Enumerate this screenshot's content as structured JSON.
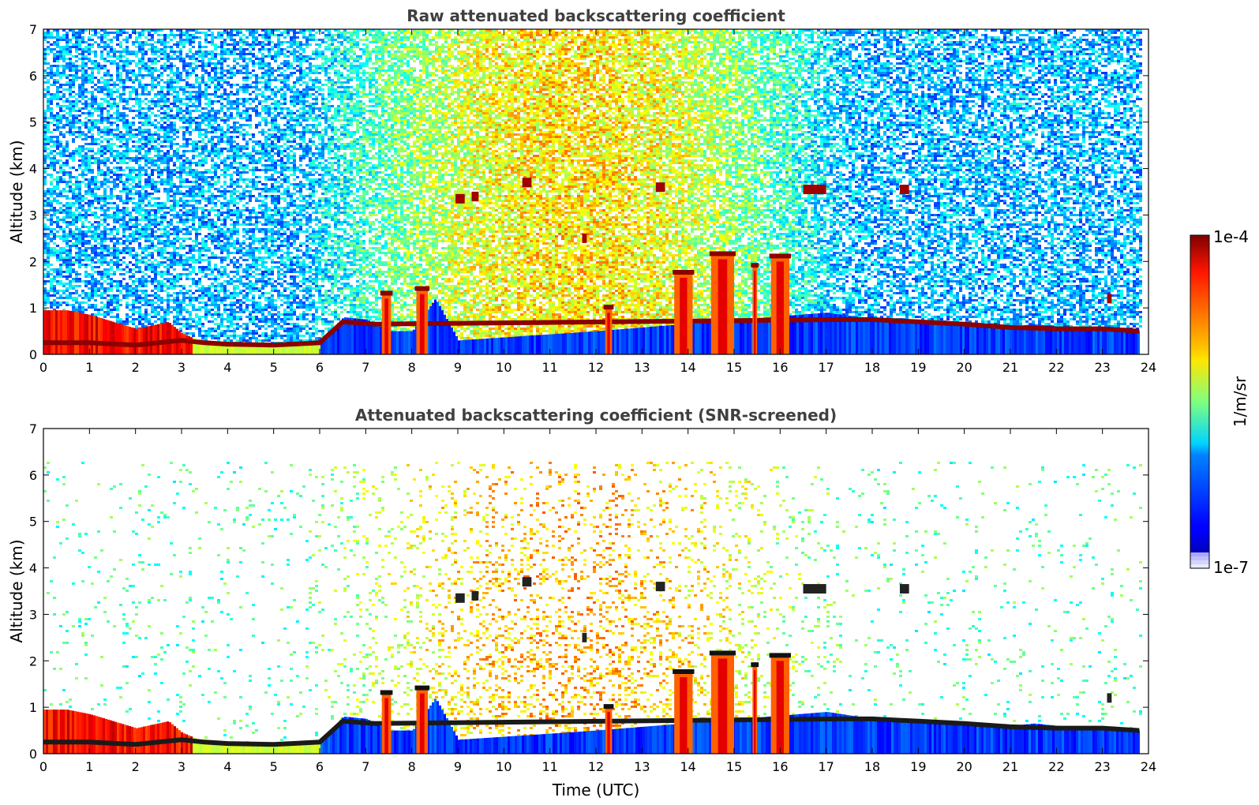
{
  "chart_data": [
    {
      "type": "heatmap",
      "title": "Raw attenuated backscattering coefficient",
      "xlabel": "",
      "ylabel": "Altitude (km)",
      "xlim": [
        0,
        24
      ],
      "ylim": [
        0,
        7
      ],
      "xticks": [
        "0",
        "1",
        "2",
        "3",
        "4",
        "5",
        "6",
        "7",
        "8",
        "9",
        "10",
        "11",
        "12",
        "13",
        "14",
        "15",
        "16",
        "17",
        "18",
        "19",
        "20",
        "21",
        "22",
        "23",
        "24"
      ],
      "yticks": [
        "0",
        "1",
        "2",
        "3",
        "4",
        "5",
        "6",
        "7"
      ],
      "screened": false,
      "data_end_time": 23.8,
      "boundary_layer_top_km": [
        [
          0,
          0.95
        ],
        [
          0.5,
          0.95
        ],
        [
          1,
          0.85
        ],
        [
          2,
          0.55
        ],
        [
          2.7,
          0.7
        ],
        [
          3,
          0.45
        ],
        [
          3.5,
          0.25
        ],
        [
          4,
          0.2
        ],
        [
          5,
          0.18
        ],
        [
          6,
          0.25
        ],
        [
          6.5,
          0.8
        ],
        [
          7,
          0.75
        ],
        [
          7.5,
          0.5
        ],
        [
          8,
          0.5
        ],
        [
          8.5,
          1.2
        ],
        [
          9,
          0.3
        ],
        [
          12,
          0.5
        ],
        [
          17,
          0.9
        ],
        [
          18,
          0.75
        ],
        [
          19,
          0.7
        ],
        [
          20,
          0.65
        ],
        [
          21,
          0.6
        ],
        [
          21.5,
          0.65
        ],
        [
          22,
          0.6
        ],
        [
          23,
          0.55
        ],
        [
          23.8,
          0.5
        ]
      ],
      "aerosol_layer_km": [
        [
          0,
          0.25
        ],
        [
          1,
          0.25
        ],
        [
          2,
          0.2
        ],
        [
          3,
          0.3
        ],
        [
          3.5,
          0.25
        ],
        [
          4,
          0.22
        ],
        [
          5,
          0.2
        ],
        [
          6,
          0.25
        ],
        [
          6.5,
          0.7
        ],
        [
          7.2,
          0.65
        ],
        [
          17.3,
          0.75
        ],
        [
          18,
          0.75
        ],
        [
          19,
          0.7
        ],
        [
          20,
          0.65
        ],
        [
          21,
          0.58
        ],
        [
          22,
          0.55
        ],
        [
          23,
          0.55
        ],
        [
          23.8,
          0.5
        ]
      ],
      "precipitation_shafts": [
        {
          "t0": 7.35,
          "t1": 7.55,
          "top": 1.3
        },
        {
          "t0": 8.1,
          "t1": 8.35,
          "top": 1.4
        },
        {
          "t0": 12.2,
          "t1": 12.35,
          "top": 1.0
        },
        {
          "t0": 13.7,
          "t1": 14.1,
          "top": 1.75
        },
        {
          "t0": 14.5,
          "t1": 15.0,
          "top": 2.15
        },
        {
          "t0": 15.4,
          "t1": 15.5,
          "top": 1.9
        },
        {
          "t0": 15.8,
          "t1": 16.2,
          "top": 2.1
        }
      ],
      "cloud_patches": [
        {
          "t": 8.95,
          "t2": 9.15,
          "z": 3.35
        },
        {
          "t": 9.3,
          "t2": 9.45,
          "z": 3.4
        },
        {
          "t": 10.4,
          "t2": 10.6,
          "z": 3.7
        },
        {
          "t": 11.7,
          "t2": 11.8,
          "z": 2.5
        },
        {
          "t": 13.3,
          "t2": 13.5,
          "z": 3.6
        },
        {
          "t": 16.5,
          "t2": 17.0,
          "z": 3.55
        },
        {
          "t": 18.6,
          "t2": 18.8,
          "z": 3.55
        },
        {
          "t": 23.1,
          "t2": 23.2,
          "z": 1.2
        }
      ],
      "colorbar": {
        "min_label": "1e-7",
        "max_label": "1e-4",
        "label": "1/m/sr",
        "scale": "log",
        "colormap": "jet"
      }
    },
    {
      "type": "heatmap",
      "title": "Attenuated backscattering coefficient (SNR-screened)",
      "xlabel": "Time (UTC)",
      "ylabel": "Altitude (km)",
      "xlim": [
        0,
        24
      ],
      "ylim": [
        0,
        7
      ],
      "xticks": [
        "0",
        "1",
        "2",
        "3",
        "4",
        "5",
        "6",
        "7",
        "8",
        "9",
        "10",
        "11",
        "12",
        "13",
        "14",
        "15",
        "16",
        "17",
        "18",
        "19",
        "20",
        "21",
        "22",
        "23",
        "24"
      ],
      "yticks": [
        "0",
        "1",
        "2",
        "3",
        "4",
        "5",
        "6",
        "7"
      ],
      "screened": true,
      "data_end_time": 23.8
    }
  ],
  "colors": {
    "title": "#404040",
    "axis": "#000000",
    "background": "#ffffff"
  }
}
